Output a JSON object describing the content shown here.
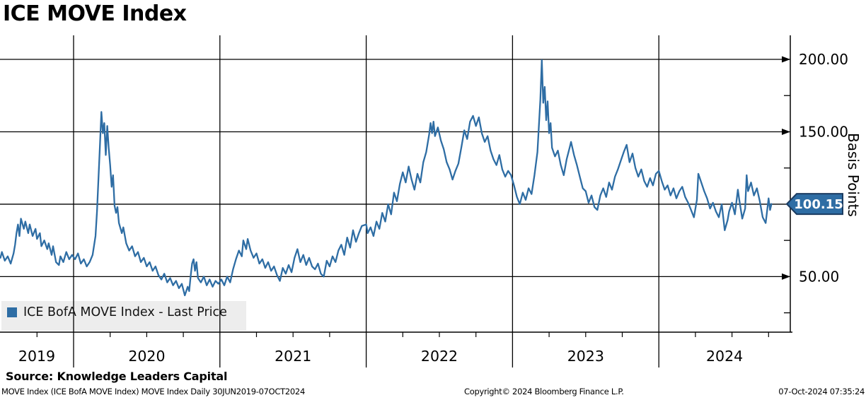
{
  "title": "ICE MOVE Index",
  "legend": {
    "label": "ICE BofA MOVE Index - Last Price",
    "marker_color": "#2e6da4",
    "background": "#ededed"
  },
  "source_line": "Source: Knowledge Leaders Capital",
  "footer": {
    "left": "MOVE Index (ICE BofA MOVE Index) MOVE Index  Daily 30JUN2019-07OCT2024",
    "center": "Copyright© 2024 Bloomberg Finance L.P.",
    "right": "07-Oct-2024 07:35:24"
  },
  "y_axis": {
    "label": "Basis Points",
    "major_ticks": [
      {
        "value": 200,
        "label": "200.00"
      },
      {
        "value": 150,
        "label": "150.00"
      },
      {
        "value": 50,
        "label": "50.00"
      }
    ],
    "minor_ticks": [
      175,
      125,
      75,
      25
    ],
    "last_price_badge": {
      "value": "100.15",
      "fill": "#2e6da4",
      "border": "#1b3b60",
      "text_color": "#ffffff"
    }
  },
  "x_axis": {
    "year_labels": [
      "2019",
      "2020",
      "2021",
      "2022",
      "2023",
      "2024"
    ]
  },
  "chart_data": {
    "type": "line",
    "title": "ICE MOVE Index",
    "ylabel": "Basis Points",
    "frequency": "Daily",
    "x_range": [
      "30JUN2019",
      "07OCT2024"
    ],
    "ylim": [
      11.5,
      216.5
    ],
    "yticks": [
      50,
      100,
      150,
      200
    ],
    "y_minor_ticks": [
      25,
      75,
      125,
      175
    ],
    "year_gridlines": [
      2020,
      2021,
      2022,
      2023,
      2024
    ],
    "grid": true,
    "legend_position": "bottom-left",
    "last_price": 100.15,
    "series": [
      {
        "name": "ICE BofA MOVE Index - Last Price",
        "color": "#2e6da4",
        "points": [
          [
            2019.5,
            63
          ],
          [
            2019.51,
            67
          ],
          [
            2019.53,
            61
          ],
          [
            2019.55,
            64
          ],
          [
            2019.57,
            59
          ],
          [
            2019.59,
            66
          ],
          [
            2019.6,
            72
          ],
          [
            2019.61,
            80
          ],
          [
            2019.62,
            86
          ],
          [
            2019.63,
            78
          ],
          [
            2019.64,
            90
          ],
          [
            2019.66,
            83
          ],
          [
            2019.67,
            88
          ],
          [
            2019.69,
            80
          ],
          [
            2019.7,
            86
          ],
          [
            2019.72,
            78
          ],
          [
            2019.74,
            83
          ],
          [
            2019.75,
            76
          ],
          [
            2019.77,
            80
          ],
          [
            2019.78,
            71
          ],
          [
            2019.8,
            75
          ],
          [
            2019.82,
            69
          ],
          [
            2019.83,
            73
          ],
          [
            2019.85,
            65
          ],
          [
            2019.86,
            71
          ],
          [
            2019.88,
            60
          ],
          [
            2019.9,
            58
          ],
          [
            2019.91,
            64
          ],
          [
            2019.93,
            60
          ],
          [
            2019.95,
            67
          ],
          [
            2019.97,
            62
          ],
          [
            2019.99,
            65
          ],
          [
            2020.01,
            62
          ],
          [
            2020.03,
            66
          ],
          [
            2020.05,
            59
          ],
          [
            2020.07,
            62
          ],
          [
            2020.09,
            57
          ],
          [
            2020.11,
            60
          ],
          [
            2020.13,
            65
          ],
          [
            2020.15,
            78
          ],
          [
            2020.16,
            95
          ],
          [
            2020.17,
            118
          ],
          [
            2020.18,
            140
          ],
          [
            2020.19,
            163.7
          ],
          [
            2020.2,
            149
          ],
          [
            2020.21,
            156
          ],
          [
            2020.22,
            134
          ],
          [
            2020.23,
            154
          ],
          [
            2020.24,
            139
          ],
          [
            2020.25,
            127
          ],
          [
            2020.26,
            112
          ],
          [
            2020.27,
            120
          ],
          [
            2020.28,
            99
          ],
          [
            2020.29,
            94
          ],
          [
            2020.3,
            98
          ],
          [
            2020.31,
            87
          ],
          [
            2020.33,
            80
          ],
          [
            2020.34,
            84
          ],
          [
            2020.36,
            73
          ],
          [
            2020.38,
            68
          ],
          [
            2020.4,
            71
          ],
          [
            2020.42,
            64
          ],
          [
            2020.44,
            67
          ],
          [
            2020.46,
            60
          ],
          [
            2020.48,
            63
          ],
          [
            2020.5,
            57
          ],
          [
            2020.52,
            60
          ],
          [
            2020.54,
            54
          ],
          [
            2020.56,
            57
          ],
          [
            2020.58,
            51
          ],
          [
            2020.6,
            48
          ],
          [
            2020.62,
            52
          ],
          [
            2020.64,
            46
          ],
          [
            2020.66,
            49
          ],
          [
            2020.68,
            44
          ],
          [
            2020.7,
            47
          ],
          [
            2020.72,
            42
          ],
          [
            2020.74,
            45
          ],
          [
            2020.76,
            37
          ],
          [
            2020.78,
            43
          ],
          [
            2020.79,
            40
          ],
          [
            2020.8,
            50
          ],
          [
            2020.81,
            59
          ],
          [
            2020.82,
            62
          ],
          [
            2020.83,
            54
          ],
          [
            2020.84,
            60
          ],
          [
            2020.85,
            49
          ],
          [
            2020.87,
            46
          ],
          [
            2020.89,
            50
          ],
          [
            2020.91,
            44
          ],
          [
            2020.93,
            48
          ],
          [
            2020.95,
            43
          ],
          [
            2020.97,
            47
          ],
          [
            2020.99,
            45
          ],
          [
            2021.01,
            48
          ],
          [
            2021.03,
            44
          ],
          [
            2021.05,
            50
          ],
          [
            2021.07,
            46
          ],
          [
            2021.09,
            55
          ],
          [
            2021.11,
            62
          ],
          [
            2021.13,
            68
          ],
          [
            2021.15,
            64
          ],
          [
            2021.16,
            75
          ],
          [
            2021.18,
            69
          ],
          [
            2021.19,
            76
          ],
          [
            2021.21,
            68
          ],
          [
            2021.23,
            63
          ],
          [
            2021.25,
            66
          ],
          [
            2021.27,
            59
          ],
          [
            2021.29,
            62
          ],
          [
            2021.31,
            56
          ],
          [
            2021.33,
            60
          ],
          [
            2021.35,
            54
          ],
          [
            2021.37,
            57
          ],
          [
            2021.39,
            51
          ],
          [
            2021.41,
            47
          ],
          [
            2021.43,
            56
          ],
          [
            2021.45,
            52
          ],
          [
            2021.47,
            58
          ],
          [
            2021.49,
            53
          ],
          [
            2021.51,
            63
          ],
          [
            2021.53,
            69
          ],
          [
            2021.55,
            60
          ],
          [
            2021.57,
            65
          ],
          [
            2021.59,
            58
          ],
          [
            2021.61,
            63
          ],
          [
            2021.63,
            57
          ],
          [
            2021.65,
            55
          ],
          [
            2021.67,
            59
          ],
          [
            2021.69,
            52
          ],
          [
            2021.71,
            50
          ],
          [
            2021.73,
            61
          ],
          [
            2021.75,
            57
          ],
          [
            2021.77,
            64
          ],
          [
            2021.79,
            60
          ],
          [
            2021.81,
            68
          ],
          [
            2021.83,
            72
          ],
          [
            2021.85,
            65
          ],
          [
            2021.87,
            77
          ],
          [
            2021.89,
            70
          ],
          [
            2021.91,
            82
          ],
          [
            2021.93,
            74
          ],
          [
            2021.95,
            80
          ],
          [
            2021.97,
            85
          ],
          [
            2022.0,
            86
          ],
          [
            2022.01,
            80
          ],
          [
            2022.03,
            84
          ],
          [
            2022.05,
            78
          ],
          [
            2022.07,
            88
          ],
          [
            2022.09,
            83
          ],
          [
            2022.11,
            94
          ],
          [
            2022.13,
            88
          ],
          [
            2022.15,
            100
          ],
          [
            2022.17,
            93
          ],
          [
            2022.19,
            108
          ],
          [
            2022.21,
            102
          ],
          [
            2022.23,
            114
          ],
          [
            2022.25,
            122
          ],
          [
            2022.27,
            115
          ],
          [
            2022.29,
            126
          ],
          [
            2022.31,
            117
          ],
          [
            2022.33,
            110
          ],
          [
            2022.35,
            121
          ],
          [
            2022.37,
            115
          ],
          [
            2022.39,
            129
          ],
          [
            2022.41,
            136
          ],
          [
            2022.43,
            148
          ],
          [
            2022.44,
            156
          ],
          [
            2022.45,
            149
          ],
          [
            2022.46,
            157
          ],
          [
            2022.47,
            147
          ],
          [
            2022.49,
            153
          ],
          [
            2022.51,
            144
          ],
          [
            2022.53,
            138
          ],
          [
            2022.55,
            129
          ],
          [
            2022.57,
            124
          ],
          [
            2022.59,
            117
          ],
          [
            2022.61,
            123
          ],
          [
            2022.63,
            128
          ],
          [
            2022.65,
            139
          ],
          [
            2022.67,
            151
          ],
          [
            2022.69,
            145
          ],
          [
            2022.71,
            157
          ],
          [
            2022.73,
            161
          ],
          [
            2022.75,
            154
          ],
          [
            2022.77,
            160
          ],
          [
            2022.79,
            149
          ],
          [
            2022.81,
            143
          ],
          [
            2022.83,
            147
          ],
          [
            2022.85,
            137
          ],
          [
            2022.87,
            131
          ],
          [
            2022.89,
            127
          ],
          [
            2022.91,
            134
          ],
          [
            2022.93,
            124
          ],
          [
            2022.95,
            119
          ],
          [
            2022.97,
            123
          ],
          [
            2022.99,
            120
          ],
          [
            2023.01,
            113
          ],
          [
            2023.03,
            105
          ],
          [
            2023.05,
            100
          ],
          [
            2023.07,
            108
          ],
          [
            2023.09,
            103
          ],
          [
            2023.11,
            111
          ],
          [
            2023.13,
            107
          ],
          [
            2023.15,
            120
          ],
          [
            2023.17,
            136
          ],
          [
            2023.19,
            172
          ],
          [
            2023.2,
            199.5
          ],
          [
            2023.21,
            170
          ],
          [
            2023.22,
            181
          ],
          [
            2023.23,
            158
          ],
          [
            2023.24,
            171
          ],
          [
            2023.25,
            149
          ],
          [
            2023.26,
            156
          ],
          [
            2023.27,
            139
          ],
          [
            2023.29,
            133
          ],
          [
            2023.31,
            137
          ],
          [
            2023.33,
            127
          ],
          [
            2023.35,
            120
          ],
          [
            2023.37,
            131
          ],
          [
            2023.39,
            139
          ],
          [
            2023.4,
            143
          ],
          [
            2023.42,
            134
          ],
          [
            2023.44,
            127
          ],
          [
            2023.46,
            119
          ],
          [
            2023.48,
            111
          ],
          [
            2023.5,
            109
          ],
          [
            2023.52,
            101
          ],
          [
            2023.54,
            106
          ],
          [
            2023.56,
            98
          ],
          [
            2023.58,
            96
          ],
          [
            2023.6,
            106
          ],
          [
            2023.62,
            111
          ],
          [
            2023.64,
            105
          ],
          [
            2023.66,
            115
          ],
          [
            2023.68,
            110
          ],
          [
            2023.7,
            119
          ],
          [
            2023.72,
            124
          ],
          [
            2023.74,
            130
          ],
          [
            2023.76,
            136
          ],
          [
            2023.78,
            141
          ],
          [
            2023.8,
            129
          ],
          [
            2023.82,
            135
          ],
          [
            2023.84,
            125
          ],
          [
            2023.86,
            119
          ],
          [
            2023.88,
            124
          ],
          [
            2023.9,
            116
          ],
          [
            2023.92,
            112
          ],
          [
            2023.94,
            118
          ],
          [
            2023.96,
            113
          ],
          [
            2023.98,
            121
          ],
          [
            2024.0,
            123
          ],
          [
            2024.02,
            116
          ],
          [
            2024.04,
            110
          ],
          [
            2024.06,
            113
          ],
          [
            2024.08,
            106
          ],
          [
            2024.1,
            111
          ],
          [
            2024.12,
            104
          ],
          [
            2024.14,
            109
          ],
          [
            2024.16,
            112
          ],
          [
            2024.18,
            105
          ],
          [
            2024.2,
            101
          ],
          [
            2024.22,
            96
          ],
          [
            2024.24,
            91
          ],
          [
            2024.26,
            103
          ],
          [
            2024.27,
            121
          ],
          [
            2024.29,
            115
          ],
          [
            2024.31,
            109
          ],
          [
            2024.33,
            104
          ],
          [
            2024.35,
            97
          ],
          [
            2024.37,
            101
          ],
          [
            2024.39,
            95
          ],
          [
            2024.41,
            91
          ],
          [
            2024.43,
            100
          ],
          [
            2024.45,
            82
          ],
          [
            2024.47,
            89
          ],
          [
            2024.48,
            95
          ],
          [
            2024.5,
            101
          ],
          [
            2024.52,
            93
          ],
          [
            2024.54,
            110
          ],
          [
            2024.55,
            103
          ],
          [
            2024.57,
            90
          ],
          [
            2024.59,
            97
          ],
          [
            2024.6,
            120
          ],
          [
            2024.61,
            109
          ],
          [
            2024.63,
            115
          ],
          [
            2024.65,
            106
          ],
          [
            2024.67,
            111
          ],
          [
            2024.69,
            102
          ],
          [
            2024.71,
            91
          ],
          [
            2024.73,
            87
          ],
          [
            2024.75,
            104
          ],
          [
            2024.76,
            96
          ],
          [
            2024.77,
            100.15
          ]
        ]
      }
    ]
  }
}
